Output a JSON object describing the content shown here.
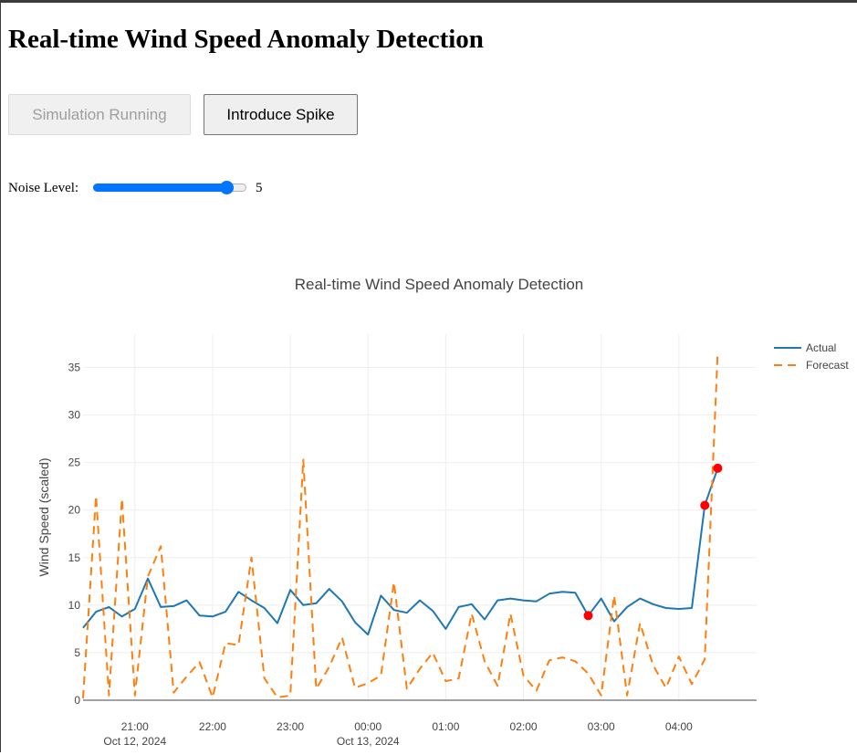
{
  "page": {
    "title": "Real-time Wind Speed Anomaly Detection"
  },
  "controls": {
    "simulation_label": "Simulation Running",
    "spike_label": "Introduce Spike",
    "noise_label": "Noise Level:",
    "noise_value": "5",
    "noise_fraction": 0.9
  },
  "chart_data": {
    "type": "line",
    "title": "Real-time Wind Speed Anomaly Detection",
    "xlabel": "",
    "ylabel": "Wind Speed (scaled)",
    "x_range": [
      "2024-10-12 20:20",
      "2024-10-13 05:00"
    ],
    "ylim": [
      0,
      38.5
    ],
    "yticks": [
      0,
      5,
      10,
      15,
      20,
      25,
      30,
      35
    ],
    "xticks": [
      {
        "t": "2024-10-12 21:00",
        "label": "21:00",
        "sub": "Oct 12, 2024"
      },
      {
        "t": "2024-10-12 22:00",
        "label": "22:00",
        "sub": ""
      },
      {
        "t": "2024-10-12 23:00",
        "label": "23:00",
        "sub": ""
      },
      {
        "t": "2024-10-13 00:00",
        "label": "00:00",
        "sub": "Oct 13, 2024"
      },
      {
        "t": "2024-10-13 01:00",
        "label": "01:00",
        "sub": ""
      },
      {
        "t": "2024-10-13 02:00",
        "label": "02:00",
        "sub": ""
      },
      {
        "t": "2024-10-13 03:00",
        "label": "03:00",
        "sub": ""
      },
      {
        "t": "2024-10-13 04:00",
        "label": "04:00",
        "sub": ""
      }
    ],
    "grid": true,
    "legend_position": "top-right",
    "x": [
      "2024-10-12 20:20",
      "2024-10-12 20:30",
      "2024-10-12 20:40",
      "2024-10-12 20:50",
      "2024-10-12 21:00",
      "2024-10-12 21:10",
      "2024-10-12 21:20",
      "2024-10-12 21:30",
      "2024-10-12 21:40",
      "2024-10-12 21:50",
      "2024-10-12 22:00",
      "2024-10-12 22:10",
      "2024-10-12 22:20",
      "2024-10-12 22:30",
      "2024-10-12 22:40",
      "2024-10-12 22:50",
      "2024-10-12 23:00",
      "2024-10-12 23:10",
      "2024-10-12 23:20",
      "2024-10-12 23:30",
      "2024-10-12 23:40",
      "2024-10-12 23:50",
      "2024-10-13 00:00",
      "2024-10-13 00:10",
      "2024-10-13 00:20",
      "2024-10-13 00:30",
      "2024-10-13 00:40",
      "2024-10-13 00:50",
      "2024-10-13 01:00",
      "2024-10-13 01:10",
      "2024-10-13 01:20",
      "2024-10-13 01:30",
      "2024-10-13 01:40",
      "2024-10-13 01:50",
      "2024-10-13 02:00",
      "2024-10-13 02:10",
      "2024-10-13 02:20",
      "2024-10-13 02:30",
      "2024-10-13 02:40",
      "2024-10-13 02:50",
      "2024-10-13 03:00",
      "2024-10-13 03:10",
      "2024-10-13 03:20",
      "2024-10-13 03:30",
      "2024-10-13 03:40",
      "2024-10-13 03:50",
      "2024-10-13 04:00",
      "2024-10-13 04:10",
      "2024-10-13 04:20",
      "2024-10-13 04:30"
    ],
    "series": [
      {
        "name": "Actual",
        "color": "#1f77b4",
        "dash": "solid",
        "values": [
          7.6,
          9.3,
          9.8,
          8.8,
          9.6,
          12.8,
          9.8,
          9.9,
          10.5,
          8.9,
          8.8,
          9.3,
          11.4,
          10.5,
          9.7,
          8.1,
          11.6,
          10.0,
          10.2,
          11.7,
          10.4,
          8.2,
          6.9,
          11.0,
          9.5,
          9.2,
          10.5,
          9.4,
          7.5,
          9.8,
          10.1,
          8.5,
          10.5,
          10.7,
          10.5,
          10.4,
          11.2,
          11.4,
          11.3,
          8.9,
          10.7,
          8.3,
          9.8,
          10.7,
          10.1,
          9.7,
          9.6,
          9.7,
          20.5,
          24.4
        ]
      },
      {
        "name": "Forecast",
        "color": "#ff7f0e",
        "dash": "dash",
        "values": [
          0.2,
          21.5,
          0.5,
          21.2,
          0.5,
          13.0,
          16.2,
          0.8,
          2.5,
          4.0,
          0.3,
          6.0,
          5.8,
          15.0,
          2.3,
          0.3,
          0.5,
          25.3,
          1.2,
          3.5,
          6.6,
          1.3,
          1.8,
          2.6,
          12.4,
          1.2,
          3.3,
          5.0,
          2.0,
          2.3,
          9.1,
          4.1,
          1.5,
          9.1,
          2.6,
          1.0,
          4.2,
          4.5,
          4.1,
          2.8,
          0.5,
          11.0,
          0.5,
          8.1,
          3.7,
          1.3,
          4.6,
          1.7,
          4.3,
          36.7
        ]
      }
    ],
    "anomalies": [
      {
        "x": "2024-10-13 02:50",
        "y": 8.9
      },
      {
        "x": "2024-10-13 04:20",
        "y": 20.5
      },
      {
        "x": "2024-10-13 04:30",
        "y": 24.4
      }
    ],
    "anomaly_color": "#ff0000"
  }
}
